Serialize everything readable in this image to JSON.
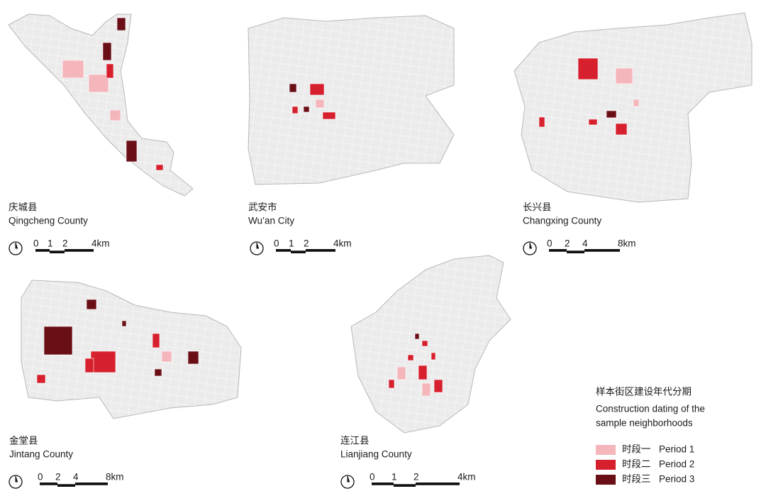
{
  "panels": [
    {
      "name_cn": "庆城县",
      "name_en": "Qingcheng County",
      "scale": [
        "0",
        "1",
        "2",
        "4km"
      ]
    },
    {
      "name_cn": "武安市",
      "name_en": "Wu’an City",
      "scale": [
        "0",
        "1",
        "2",
        "4km"
      ]
    },
    {
      "name_cn": "长兴县",
      "name_en": "Changxing County",
      "scale": [
        "0",
        "2",
        "4",
        "8km"
      ]
    },
    {
      "name_cn": "金堂县",
      "name_en": "Jintang County",
      "scale": [
        "0",
        "2",
        "4",
        "8km"
      ]
    },
    {
      "name_cn": "连江县",
      "name_en": "Lianjiang County",
      "scale": [
        "0",
        "1",
        "2",
        "4km"
      ]
    }
  ],
  "legend": {
    "title_cn": "样本街区建设年代分期",
    "title_en": [
      "Construction dating of the",
      "sample neighborhoods"
    ],
    "items": [
      {
        "cn": "时段一",
        "en": "Period 1",
        "color": "#f4b6bb"
      },
      {
        "cn": "时段二",
        "en": "Period 2",
        "color": "#d7202e"
      },
      {
        "cn": "时段三",
        "en": "Period 3",
        "color": "#6b0f16"
      }
    ]
  }
}
